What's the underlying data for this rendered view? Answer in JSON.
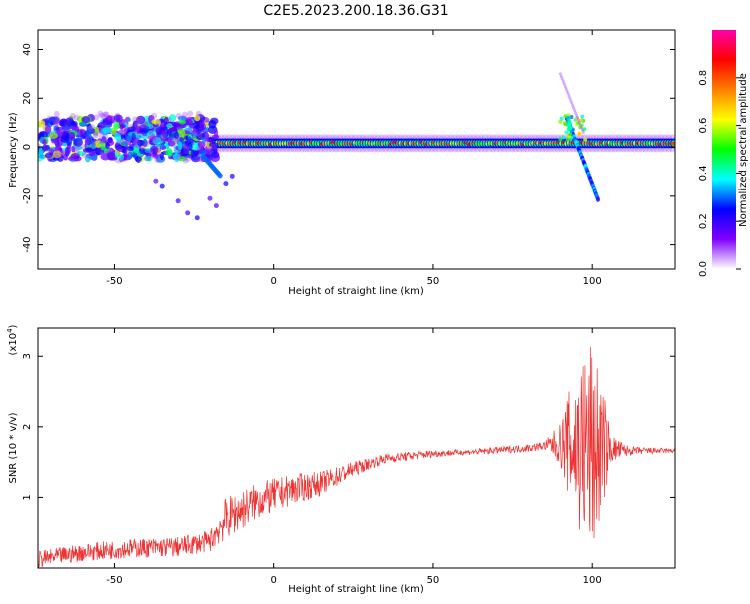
{
  "title": "C2E5.2023.200.18.36.G31",
  "colors": {
    "snr_line": "#ee3333",
    "axis": "#000000",
    "background": "#ffffff"
  },
  "chart_data": [
    {
      "type": "heatmap",
      "panel": "spectrogram",
      "title": "C2E5.2023.200.18.36.G31",
      "xlabel": "Height of straight line (km)",
      "ylabel": "Frequency (Hz)",
      "xlim": [
        -74,
        126
      ],
      "ylim": [
        -50,
        48
      ],
      "xticks": [
        -50,
        0,
        50,
        100
      ],
      "yticks": [
        -40,
        -20,
        0,
        20,
        40
      ],
      "colorbar": {
        "label": "Normalized spectral amplitude",
        "range": [
          0,
          1
        ],
        "ticks": [
          "0.0",
          "0.2",
          "0.4",
          "0.6",
          "0.8"
        ],
        "colormap": [
          "#ffffff",
          "#8000ff",
          "#0000ff",
          "#00ffff",
          "#00ff00",
          "#ffff00",
          "#ff8000",
          "#ff0000",
          "#ff00aa"
        ]
      },
      "features": [
        {
          "name": "carrier",
          "x_range": [
            -20,
            126
          ],
          "freq_hz": 1.5,
          "amplitude": 0.9
        },
        {
          "name": "scattered",
          "x_range": [
            -74,
            -18
          ],
          "freq_hz_range": [
            -5,
            12
          ],
          "amplitude": 0.45
        },
        {
          "name": "descending streak",
          "x_range": [
            -28,
            -17
          ],
          "freq_hz_range": [
            -30,
            -10
          ],
          "amplitude": 0.15
        },
        {
          "name": "disturbance",
          "x_range": [
            92,
            102
          ],
          "freq_hz_range": [
            -25,
            30
          ],
          "amplitude": 0.5
        }
      ]
    },
    {
      "type": "line",
      "panel": "snr",
      "xlabel": "Height of straight line (km)",
      "ylabel": "SNR (10 * v/v)",
      "yscale_note": "(x10",
      "yscale_exp": "4",
      "yscale_close": ")",
      "xlim": [
        -74,
        126
      ],
      "ylim": [
        0,
        3.4
      ],
      "xticks": [
        -50,
        0,
        50,
        100
      ],
      "yticks": [
        1,
        2,
        3
      ],
      "trend": {
        "x": [
          -74,
          -60,
          -45,
          -30,
          -20,
          -15,
          -5,
          5,
          15,
          25,
          35,
          50,
          65,
          80,
          88,
          92,
          96,
          100,
          104,
          110,
          126
        ],
        "y": [
          0.12,
          0.22,
          0.28,
          0.3,
          0.38,
          0.7,
          0.95,
          1.1,
          1.2,
          1.4,
          1.55,
          1.62,
          1.65,
          1.7,
          1.75,
          1.75,
          1.7,
          1.68,
          1.7,
          1.66,
          1.66
        ]
      },
      "noise": {
        "x": [
          -74,
          -20,
          -15,
          10,
          30,
          60,
          85,
          90,
          94,
          97,
          100,
          102,
          106,
          112,
          126
        ],
        "amplitude": [
          0.12,
          0.15,
          0.3,
          0.2,
          0.08,
          0.04,
          0.06,
          0.3,
          1.0,
          1.4,
          1.6,
          1.2,
          0.2,
          0.06,
          0.03
        ]
      }
    }
  ]
}
